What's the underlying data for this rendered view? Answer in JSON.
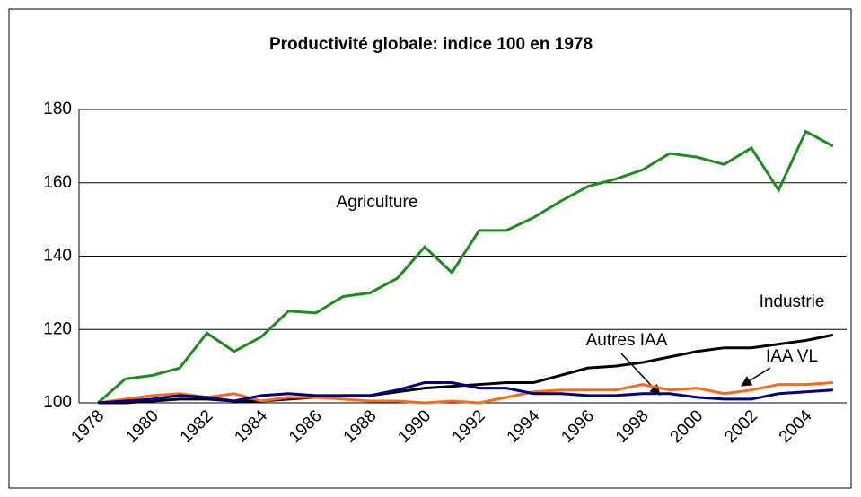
{
  "chart_data": {
    "type": "line",
    "title": "Productivité globale: indice 100 en 1978",
    "categories": [
      "1978",
      null,
      "1980",
      null,
      "1982",
      null,
      "1984",
      null,
      "1986",
      null,
      "1988",
      null,
      "1990",
      null,
      "1992",
      null,
      "1994",
      null,
      "1996",
      null,
      "1998",
      null,
      "2000",
      null,
      "2002",
      null,
      "2004",
      null
    ],
    "series": [
      {
        "name": "Agriculture",
        "color": "#1f8a1f",
        "values": [
          100,
          106.5,
          107.5,
          109.5,
          119,
          114,
          118,
          125,
          124.5,
          129,
          130,
          134,
          142.5,
          135.5,
          147,
          147,
          150.5,
          155,
          159,
          161,
          163.5,
          168,
          167,
          165,
          169.5,
          158,
          174,
          170
        ]
      },
      {
        "name": "Industrie",
        "color": "#000000",
        "values": [
          100,
          100,
          100.5,
          101,
          101,
          100.5,
          100.5,
          101,
          101.5,
          102,
          102,
          103,
          104,
          104.5,
          105,
          105.5,
          105.5,
          107.5,
          109.5,
          110,
          111,
          112.5,
          114,
          115,
          115,
          116,
          117,
          118.5
        ]
      },
      {
        "name": "IAA VL",
        "color": "#ff6a1a",
        "values": [
          100,
          101,
          102,
          102.5,
          101.5,
          102.5,
          100.5,
          101.5,
          101.5,
          101,
          100.5,
          100.5,
          100,
          100.5,
          100,
          101.5,
          103,
          103.5,
          103.5,
          103.5,
          105,
          103.5,
          104,
          102.5,
          103.5,
          105,
          105,
          105.5
        ]
      },
      {
        "name": "Autres IAA",
        "color": "#000080",
        "values": [
          100,
          100.5,
          101,
          102,
          101.5,
          100.5,
          102,
          102.5,
          102,
          102,
          102,
          103.5,
          105.5,
          105.5,
          104,
          104,
          102.5,
          102.5,
          102,
          102,
          102.5,
          102.5,
          101.5,
          101,
          101,
          102.5,
          103,
          103.5
        ]
      }
    ],
    "ylim": [
      100,
      180
    ],
    "yticks": [
      100,
      120,
      140,
      160,
      180
    ],
    "grid": true
  }
}
